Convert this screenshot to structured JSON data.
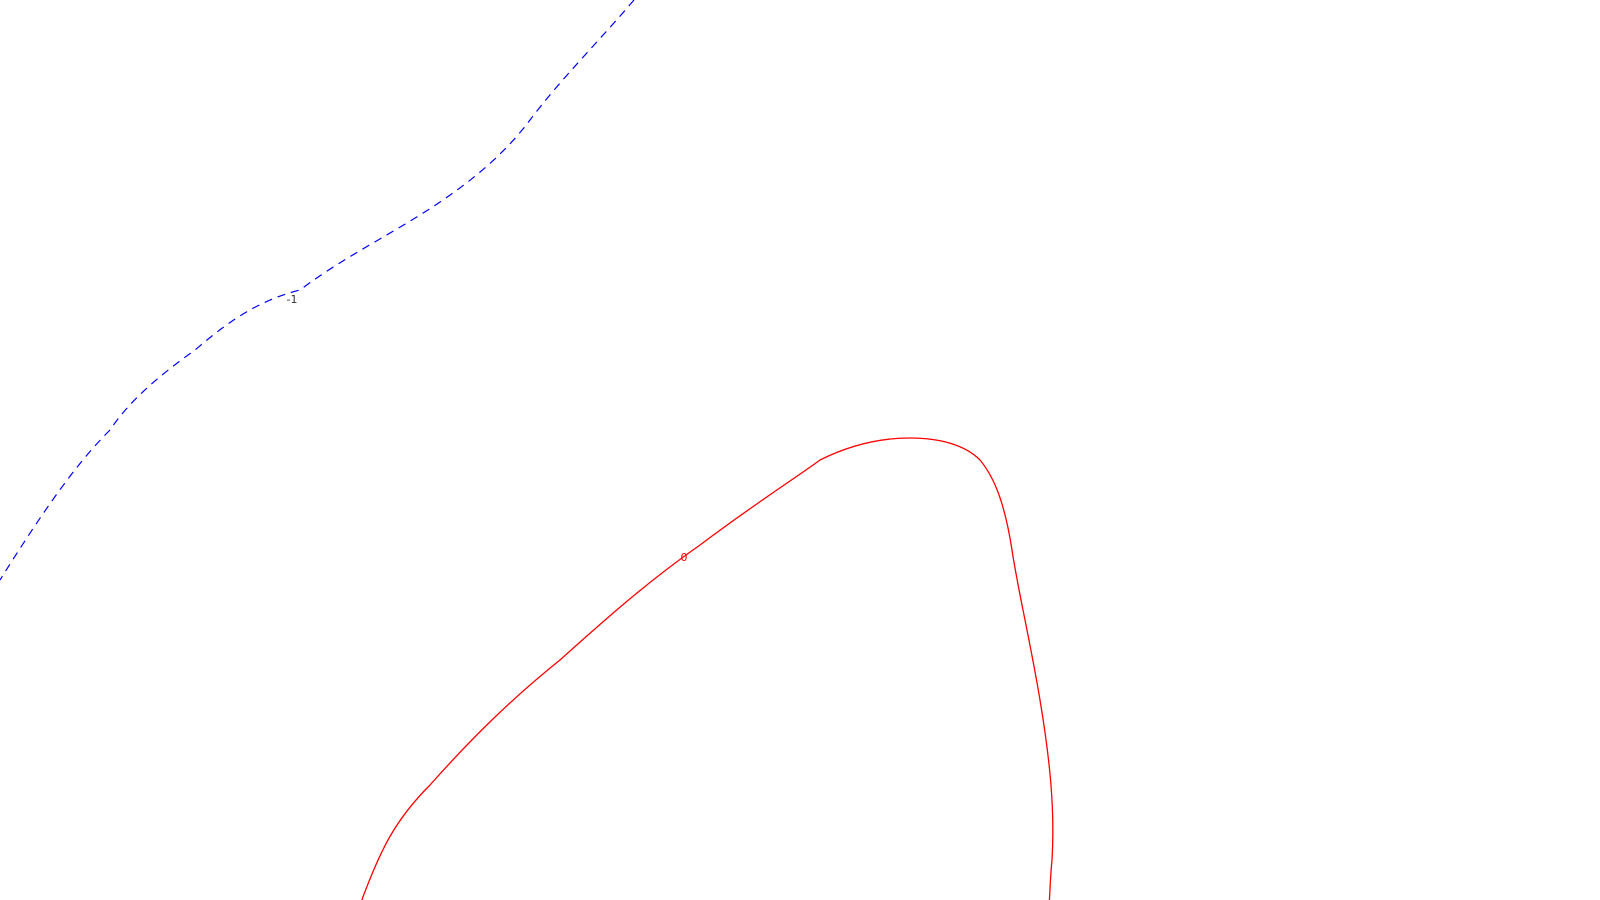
{
  "contours": [
    {
      "label": "-1",
      "color": "#0000ff",
      "style": "dashed"
    },
    {
      "label": "0",
      "color": "#ff0000",
      "style": "solid"
    }
  ]
}
